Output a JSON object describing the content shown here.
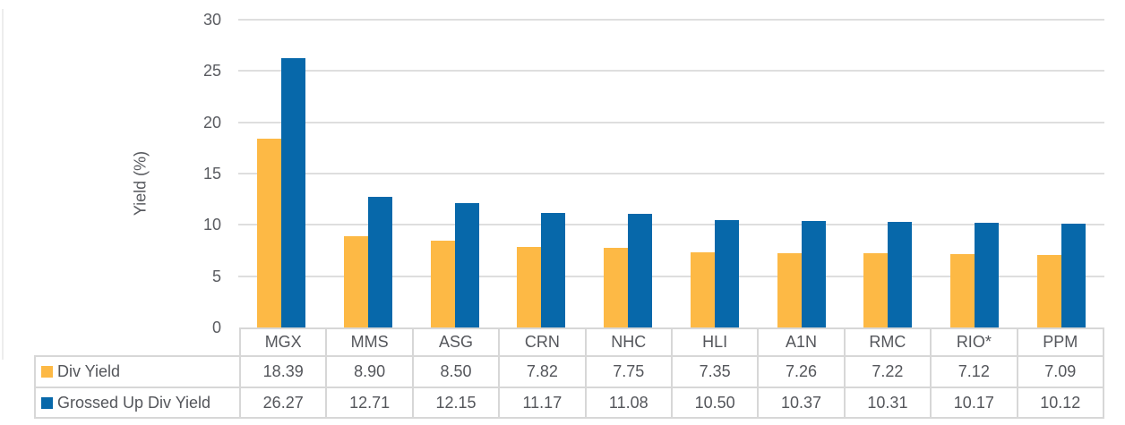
{
  "chart_data": {
    "type": "bar",
    "title": "",
    "xlabel": "",
    "ylabel": "Yield (%)",
    "ylim": [
      0,
      30
    ],
    "yticks": [
      0,
      5,
      10,
      15,
      20,
      25,
      30
    ],
    "grid": true,
    "legend_position": "data-table-left",
    "categories": [
      "MGX",
      "MMS",
      "ASG",
      "CRN",
      "NHC",
      "HLI",
      "A1N",
      "RMC",
      "RIO*",
      "PPM"
    ],
    "series": [
      {
        "name": "Div Yield",
        "color": "#fdb945",
        "values": [
          18.39,
          8.9,
          8.5,
          7.82,
          7.75,
          7.35,
          7.26,
          7.22,
          7.12,
          7.09
        ]
      },
      {
        "name": "Grossed Up Div Yield",
        "color": "#0768aa",
        "values": [
          26.27,
          12.71,
          12.15,
          11.17,
          11.08,
          10.5,
          10.37,
          10.31,
          10.17,
          10.12
        ]
      }
    ],
    "value_decimals": 2
  },
  "colors": {
    "div_yield": "#fdb945",
    "grossed_up_div_yield": "#0768aa",
    "gridline": "#dedede",
    "table_border": "#d7d7d7",
    "text": "#55575c"
  }
}
